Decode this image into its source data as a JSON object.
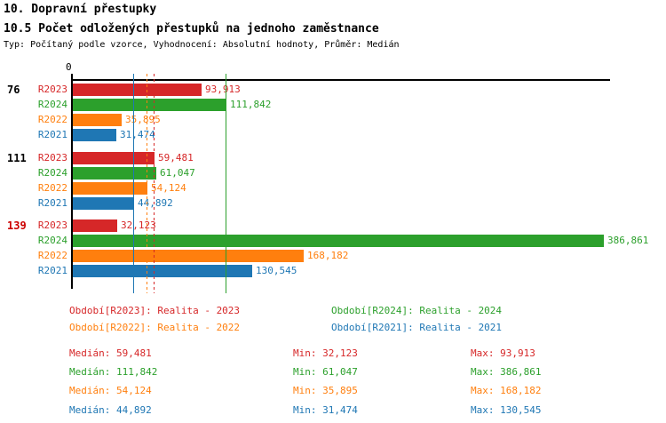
{
  "header": {
    "title": "10. Dopravní přestupky",
    "subtitle": "10.5 Počet odložených přestupků na jednoho zaměstnance",
    "meta": "Typ: Počítaný podle vzorce, Vyhodnocení: Absolutní hodnoty, Průměr: Medián"
  },
  "colors": {
    "R2023": "#d62728",
    "R2024": "#2ca02c",
    "R2022": "#ff7f0e",
    "R2021": "#1f77b4",
    "axis": "#000000",
    "highlight": "#cc0000"
  },
  "chart_data": {
    "type": "bar",
    "orientation": "horizontal",
    "title": "10.5 Počet odložených přestupků na jednoho zaměstnance",
    "x_origin_label": "0",
    "xlim": [
      0,
      394
    ],
    "grid": false,
    "series_legend": [
      "R2023",
      "R2024",
      "R2022",
      "R2021"
    ],
    "groups": [
      {
        "label": "76",
        "highlight": false,
        "bars": [
          {
            "series": "R2023",
            "value": 93.913,
            "label": "93,913"
          },
          {
            "series": "R2024",
            "value": 111.842,
            "label": "111,842"
          },
          {
            "series": "R2022",
            "value": 35.895,
            "label": "35,895"
          },
          {
            "series": "R2021",
            "value": 31.474,
            "label": "31,474"
          }
        ]
      },
      {
        "label": "111",
        "highlight": false,
        "bars": [
          {
            "series": "R2023",
            "value": 59.481,
            "label": "59,481"
          },
          {
            "series": "R2024",
            "value": 61.047,
            "label": "61,047"
          },
          {
            "series": "R2022",
            "value": 54.124,
            "label": "54,124"
          },
          {
            "series": "R2021",
            "value": 44.892,
            "label": "44,892"
          }
        ]
      },
      {
        "label": "139",
        "highlight": true,
        "bars": [
          {
            "series": "R2023",
            "value": 32.123,
            "label": "32,123"
          },
          {
            "series": "R2024",
            "value": 386.861,
            "label": "386,861"
          },
          {
            "series": "R2022",
            "value": 168.182,
            "label": "168,182"
          },
          {
            "series": "R2021",
            "value": 130.545,
            "label": "130,545"
          }
        ]
      }
    ],
    "medians": [
      {
        "series": "R2023",
        "value": 59.481,
        "style": "dashed"
      },
      {
        "series": "R2024",
        "value": 111.842,
        "style": "solid"
      },
      {
        "series": "R2022",
        "value": 54.124,
        "style": "dashed"
      },
      {
        "series": "R2021",
        "value": 44.892,
        "style": "solid"
      }
    ]
  },
  "legend": {
    "items": [
      {
        "series": "R2023",
        "text": "Období[R2023]: Realita - 2023"
      },
      {
        "series": "R2024",
        "text": "Období[R2024]: Realita - 2024"
      },
      {
        "series": "R2022",
        "text": "Období[R2022]: Realita - 2022"
      },
      {
        "series": "R2021",
        "text": "Období[R2021]: Realita - 2021"
      }
    ]
  },
  "stats": {
    "rows": [
      {
        "series": "R2023",
        "median": "Medián: 59,481",
        "min": "Min: 32,123",
        "max": "Max: 93,913"
      },
      {
        "series": "R2024",
        "median": "Medián: 111,842",
        "min": "Min: 61,047",
        "max": "Max: 386,861"
      },
      {
        "series": "R2022",
        "median": "Medián: 54,124",
        "min": "Min: 35,895",
        "max": "Max: 168,182"
      },
      {
        "series": "R2021",
        "median": "Medián: 44,892",
        "min": "Min: 31,474",
        "max": "Max: 130,545"
      }
    ]
  }
}
